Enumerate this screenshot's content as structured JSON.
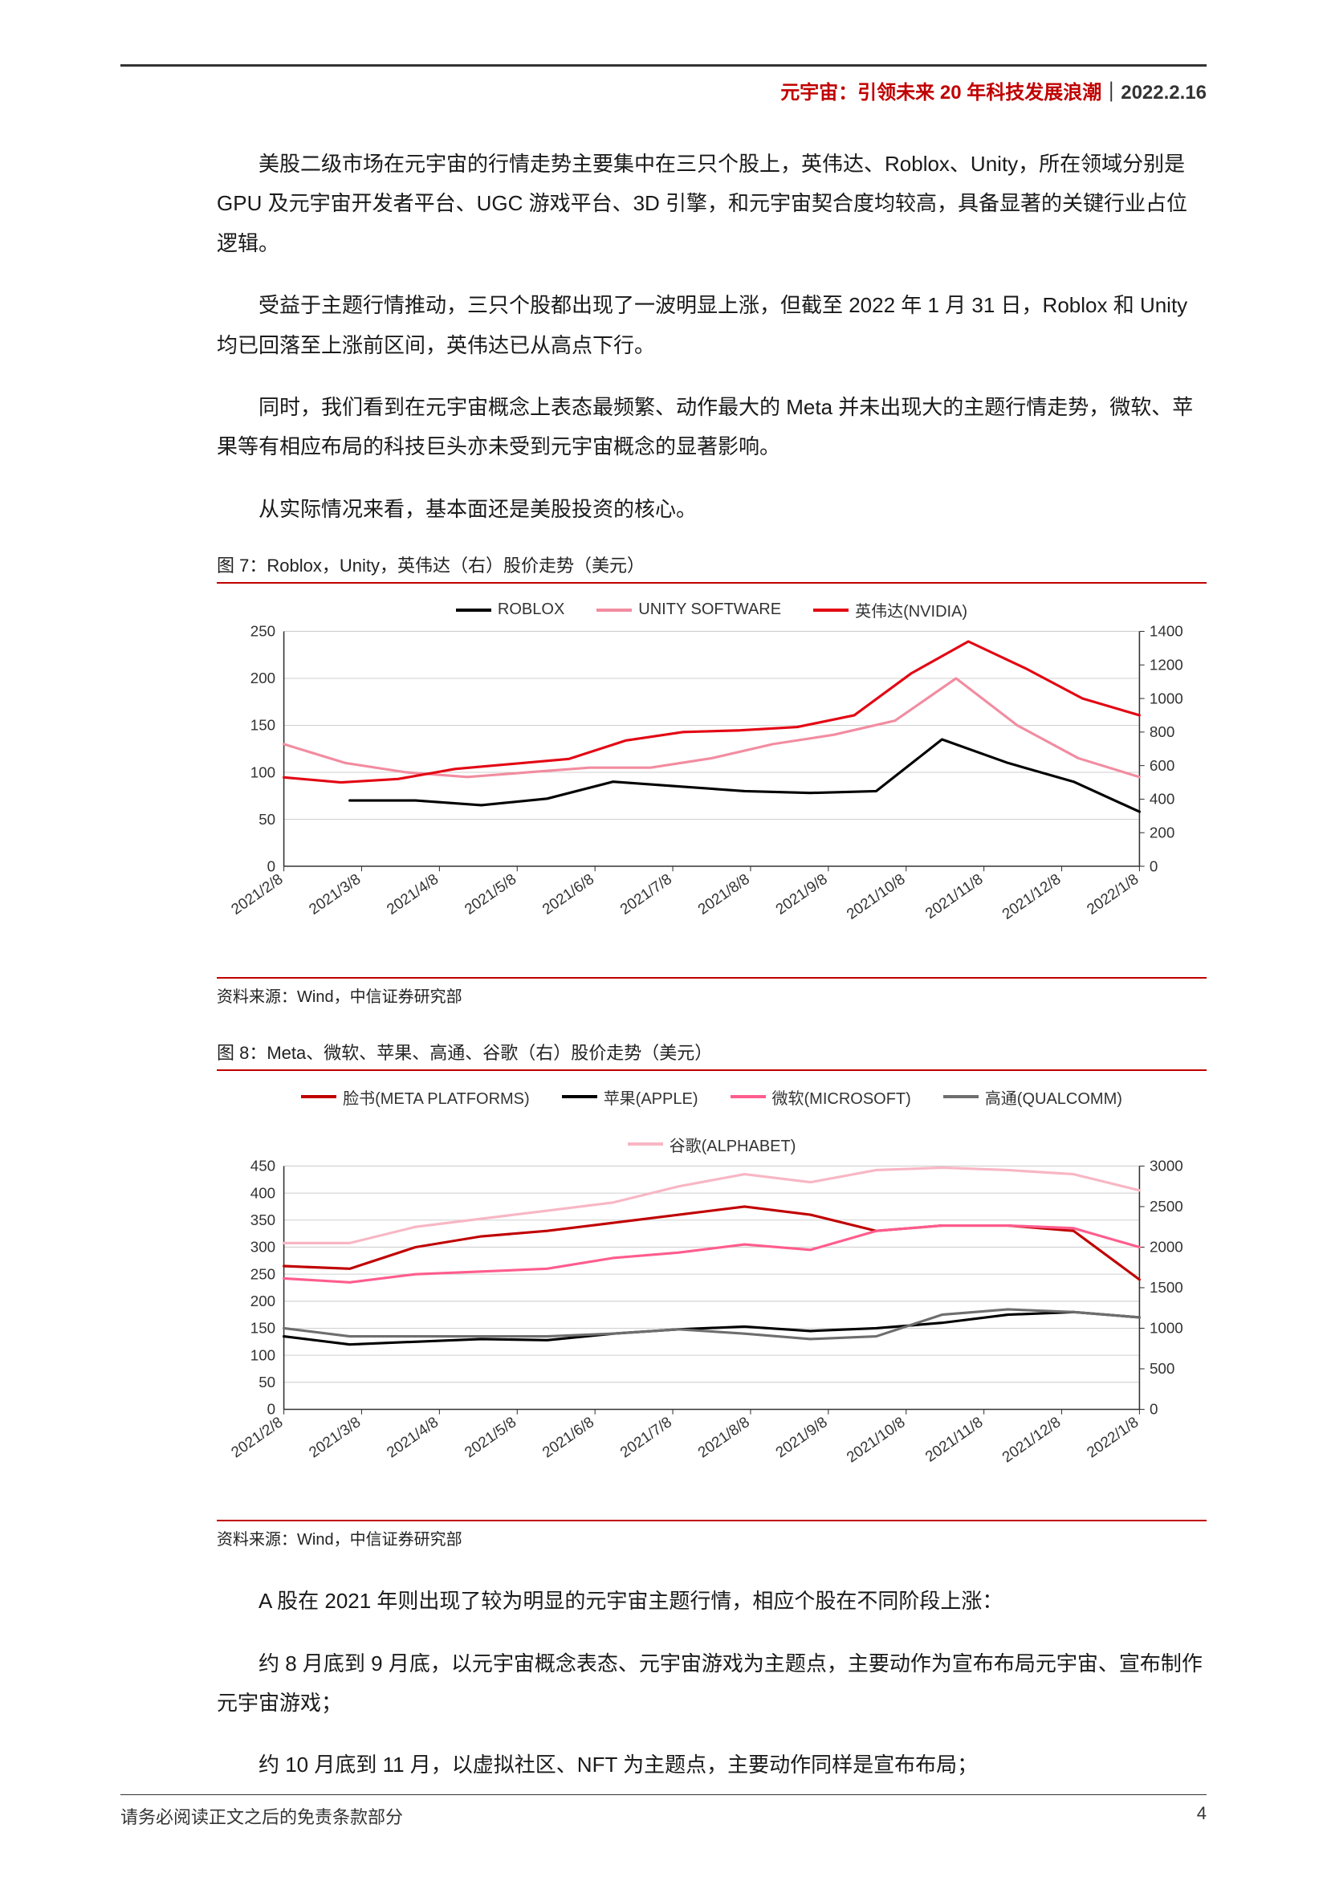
{
  "header": {
    "title_red": "元宇宙：引领未来 20 年科技发展浪潮",
    "separator": "｜",
    "date": "2022.2.16"
  },
  "paragraphs": {
    "p1": "美股二级市场在元宇宙的行情走势主要集中在三只个股上，英伟达、Roblox、Unity，所在领域分别是 GPU 及元宇宙开发者平台、UGC 游戏平台、3D 引擎，和元宇宙契合度均较高，具备显著的关键行业占位逻辑。",
    "p2": "受益于主题行情推动，三只个股都出现了一波明显上涨，但截至 2022 年 1 月 31 日，Roblox 和 Unity 均已回落至上涨前区间，英伟达已从高点下行。",
    "p3": "同时，我们看到在元宇宙概念上表态最频繁、动作最大的 Meta 并未出现大的主题行情走势，微软、苹果等有相应布局的科技巨头亦未受到元宇宙概念的显著影响。",
    "p4": "从实际情况来看，基本面还是美股投资的核心。",
    "p5": "A 股在 2021 年则出现了较为明显的元宇宙主题行情，相应个股在不同阶段上涨：",
    "p6": "约 8 月底到 9 月底，以元宇宙概念表态、元宇宙游戏为主题点，主要动作为宣布布局元宇宙、宣布制作元宇宙游戏；",
    "p7": "约 10 月底到 11 月，以虚拟社区、NFT 为主题点，主要动作同样是宣布布局；"
  },
  "chart7": {
    "type": "line",
    "title": "图 7：Roblox，Unity，英伟达（右）股价走势（美元）",
    "source": "资料来源：Wind，中信证券研究部",
    "background_color": "#ffffff",
    "grid_color": "#cfcfcf",
    "axis_color": "#333333",
    "axis_fontsize": 18,
    "left_axis": {
      "ylim": [
        0,
        250
      ],
      "ytick_step": 50
    },
    "right_axis": {
      "ylim": [
        0,
        1400
      ],
      "ytick_step": 200
    },
    "x_labels": [
      "2021/2/8",
      "2021/3/8",
      "2021/4/8",
      "2021/5/8",
      "2021/6/8",
      "2021/7/8",
      "2021/8/8",
      "2021/9/8",
      "2021/10/8",
      "2021/11/8",
      "2021/12/8",
      "2022/1/8"
    ],
    "line_width": 3,
    "series": [
      {
        "name": "ROBLOX",
        "color": "#000000",
        "axis": "left",
        "values": [
          null,
          70,
          70,
          65,
          72,
          90,
          85,
          80,
          78,
          80,
          135,
          110,
          90,
          58
        ]
      },
      {
        "name": "UNITY SOFTWARE",
        "color": "#f28ca0",
        "axis": "left",
        "values": [
          130,
          110,
          100,
          95,
          100,
          105,
          105,
          115,
          130,
          140,
          155,
          200,
          150,
          115,
          95
        ]
      },
      {
        "name": "英伟达(NVIDIA)",
        "color": "#e30613",
        "axis": "right",
        "values": [
          530,
          500,
          520,
          580,
          610,
          640,
          750,
          800,
          810,
          830,
          900,
          1150,
          1340,
          1180,
          1000,
          900
        ]
      }
    ]
  },
  "chart8": {
    "type": "line",
    "title": "图 8：Meta、微软、苹果、高通、谷歌（右）股价走势（美元）",
    "source": "资料来源：Wind，中信证券研究部",
    "background_color": "#ffffff",
    "grid_color": "#cfcfcf",
    "axis_color": "#333333",
    "axis_fontsize": 18,
    "left_axis": {
      "ylim": [
        0,
        450
      ],
      "ytick_step": 50
    },
    "right_axis": {
      "ylim": [
        0,
        3000
      ],
      "ytick_step": 500
    },
    "x_labels": [
      "2021/2/8",
      "2021/3/8",
      "2021/4/8",
      "2021/5/8",
      "2021/6/8",
      "2021/7/8",
      "2021/8/8",
      "2021/9/8",
      "2021/10/8",
      "2021/11/8",
      "2021/12/8",
      "2022/1/8"
    ],
    "line_width": 3,
    "series": [
      {
        "name": "脸书(META PLATFORMS)",
        "color": "#c00000",
        "axis": "left",
        "values": [
          265,
          260,
          300,
          320,
          330,
          345,
          360,
          375,
          360,
          330,
          340,
          340,
          330,
          240
        ]
      },
      {
        "name": "苹果(APPLE)",
        "color": "#000000",
        "axis": "left",
        "values": [
          135,
          120,
          125,
          130,
          128,
          140,
          148,
          153,
          145,
          150,
          160,
          175,
          180,
          170
        ]
      },
      {
        "name": "微软(MICROSOFT)",
        "color": "#ff5c8d",
        "axis": "left",
        "values": [
          242,
          235,
          250,
          255,
          260,
          280,
          290,
          305,
          295,
          330,
          340,
          340,
          335,
          300
        ]
      },
      {
        "name": "高通(QUALCOMM)",
        "color": "#6e6e6e",
        "axis": "left",
        "values": [
          150,
          135,
          135,
          135,
          135,
          140,
          148,
          140,
          130,
          135,
          175,
          185,
          180,
          170
        ]
      },
      {
        "name": "谷歌(ALPHABET)",
        "color": "#f8b6c4",
        "axis": "right",
        "values": [
          2050,
          2050,
          2250,
          2350,
          2450,
          2550,
          2750,
          2900,
          2800,
          2950,
          2980,
          2950,
          2900,
          2700
        ]
      }
    ]
  },
  "footer": {
    "disclaimer": "请务必阅读正文之后的免责条款部分",
    "page_number": "4"
  }
}
